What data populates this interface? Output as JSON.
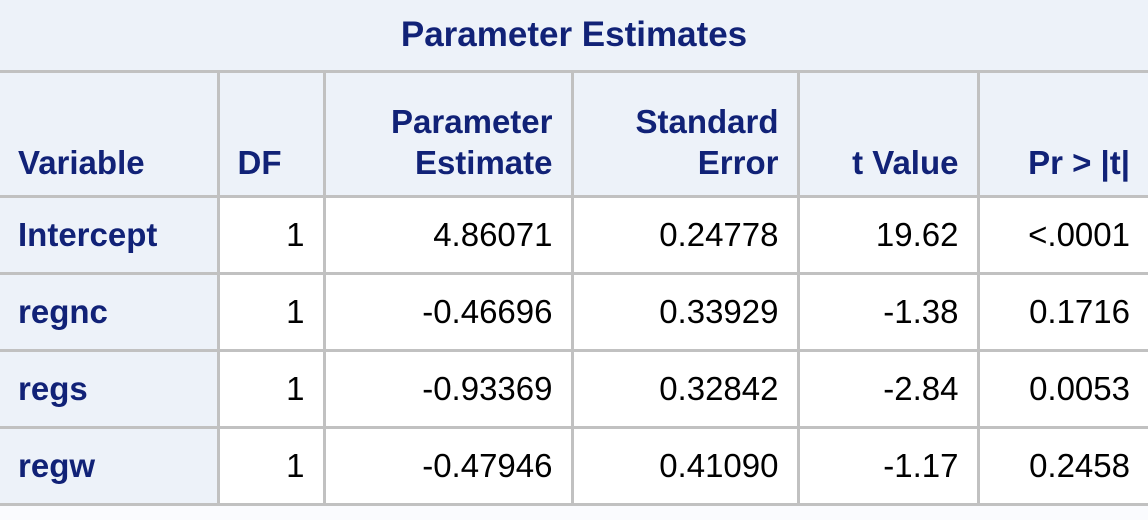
{
  "table": {
    "title": "Parameter Estimates",
    "headers": {
      "variable": "Variable",
      "df": "DF",
      "estimate_line1": "Parameter",
      "estimate_line2": "Estimate",
      "stderr_line1": "Standard",
      "stderr_line2": "Error",
      "tvalue": "t Value",
      "prob": "Pr > |t|"
    },
    "rows": [
      {
        "variable": "Intercept",
        "df": "1",
        "estimate": "4.86071",
        "stderr": "0.24778",
        "tvalue": "19.62",
        "prob": "<.0001"
      },
      {
        "variable": "regnc",
        "df": "1",
        "estimate": "-0.46696",
        "stderr": "0.33929",
        "tvalue": "-1.38",
        "prob": "0.1716"
      },
      {
        "variable": "regs",
        "df": "1",
        "estimate": "-0.93369",
        "stderr": "0.32842",
        "tvalue": "-2.84",
        "prob": "0.0053"
      },
      {
        "variable": "regw",
        "df": "1",
        "estimate": "-0.47946",
        "stderr": "0.41090",
        "tvalue": "-1.17",
        "prob": "0.2458"
      }
    ],
    "colors": {
      "header_text": "#112277",
      "header_bg": "#edf2f9",
      "cell_bg": "#ffffff",
      "border": "#c1c1c1"
    }
  }
}
